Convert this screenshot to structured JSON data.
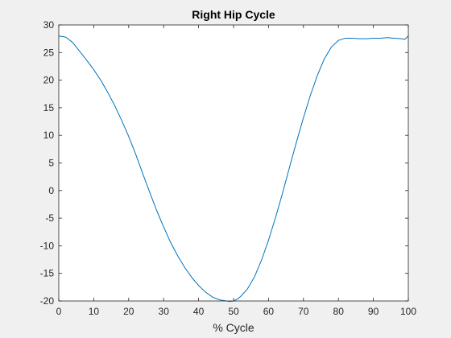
{
  "chart_data": {
    "type": "line",
    "title": "Right Hip Cycle",
    "xlabel": "% Cycle",
    "ylabel": "",
    "xlim": [
      0,
      100
    ],
    "ylim": [
      -20,
      30
    ],
    "xticks": [
      0,
      10,
      20,
      30,
      40,
      50,
      60,
      70,
      80,
      90,
      100
    ],
    "yticks": [
      -20,
      -15,
      -10,
      -5,
      0,
      5,
      10,
      15,
      20,
      25,
      30
    ],
    "grid": false,
    "line_color": "#0072bd",
    "series": [
      {
        "x": [
          0,
          2,
          4,
          6,
          8,
          10,
          12,
          14,
          16,
          18,
          20,
          22,
          24,
          26,
          28,
          30,
          32,
          34,
          36,
          38,
          40,
          42,
          44,
          46,
          48,
          49,
          50,
          51,
          52,
          54,
          56,
          58,
          60,
          62,
          64,
          66,
          68,
          70,
          72,
          74,
          76,
          78,
          80,
          82,
          84,
          86,
          88,
          90,
          92,
          94,
          96,
          98,
          99,
          100
        ],
        "y": [
          28.0,
          27.8,
          26.8,
          25.2,
          23.6,
          21.9,
          20.0,
          17.8,
          15.4,
          12.7,
          9.8,
          6.6,
          3.1,
          -0.3,
          -3.6,
          -6.6,
          -9.4,
          -11.8,
          -13.9,
          -15.7,
          -17.2,
          -18.4,
          -19.3,
          -19.8,
          -20.0,
          -20.1,
          -20.0,
          -19.7,
          -19.2,
          -17.8,
          -15.6,
          -12.6,
          -9.0,
          -4.9,
          -0.5,
          4.2,
          8.8,
          13.2,
          17.3,
          20.9,
          23.9,
          26.0,
          27.2,
          27.6,
          27.6,
          27.5,
          27.5,
          27.6,
          27.6,
          27.7,
          27.6,
          27.5,
          27.4,
          28.0
        ]
      }
    ]
  }
}
